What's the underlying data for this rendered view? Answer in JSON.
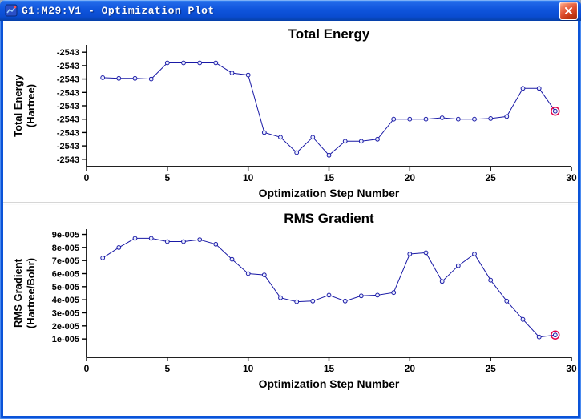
{
  "window": {
    "title": "G1:M29:V1 - Optimization Plot"
  },
  "colors": {
    "line": "#1a1aa6",
    "marker_fill": "#e9edff",
    "highlight_ring": "#e0004c",
    "axis": "#000000"
  },
  "chart_data": [
    {
      "type": "line",
      "title": "Total Energy",
      "ylabel": "Total Energy (Hartree)",
      "ylabel_lines": [
        "Total Energy",
        "(Hartree)"
      ],
      "xlabel": "Optimization Step Number",
      "xlim": [
        0,
        30
      ],
      "x_ticks": [
        0,
        5,
        10,
        15,
        20,
        25,
        30
      ],
      "y_ticks": [
        1,
        2,
        3,
        4,
        5,
        6,
        7,
        8,
        9
      ],
      "y_tick_labels": [
        "-2543",
        "-2543",
        "-2543",
        "-2543",
        "-2543",
        "-2543",
        "-2543",
        "-2543",
        "-2543"
      ],
      "ylim": [
        0.45,
        9.55
      ],
      "y_note": "axis labels are truncated to -2543; series values given in axis tick units, 1 = bottom tick, 9 = top tick",
      "x": [
        1,
        2,
        3,
        4,
        5,
        6,
        7,
        8,
        9,
        10,
        11,
        12,
        13,
        14,
        15,
        16,
        17,
        18,
        19,
        20,
        21,
        22,
        23,
        24,
        25,
        26,
        27,
        28,
        29
      ],
      "values": [
        7.1,
        7.05,
        7.05,
        7.0,
        8.2,
        8.2,
        8.2,
        8.2,
        7.45,
        7.3,
        3.0,
        2.65,
        1.5,
        2.65,
        1.3,
        2.35,
        2.35,
        2.5,
        4.0,
        4.0,
        4.0,
        4.1,
        4.0,
        4.0,
        4.05,
        4.2,
        6.3,
        6.3,
        4.6
      ],
      "grid": false,
      "legend": false,
      "highlight_last_point": true
    },
    {
      "type": "line",
      "title": "RMS Gradient",
      "ylabel": "RMS Gradient (Hartree/Bohr)",
      "ylabel_lines": [
        "RMS Gradient",
        "(Hartree/Bohr)"
      ],
      "xlabel": "Optimization Step Number",
      "xlim": [
        0,
        30
      ],
      "x_ticks": [
        0,
        5,
        10,
        15,
        20,
        25,
        30
      ],
      "y_ticks": [
        1,
        2,
        3,
        4,
        5,
        6,
        7,
        8,
        9
      ],
      "y_tick_labels": [
        "1e-005",
        "2e-005",
        "3e-005",
        "4e-005",
        "5e-005",
        "6e-005",
        "7e-005",
        "8e-005",
        "9e-005"
      ],
      "ylim": [
        -0.4,
        9.4
      ],
      "y_note": "series values given in units of 1e-005 Hartree/Bohr",
      "x": [
        1,
        2,
        3,
        4,
        5,
        6,
        7,
        8,
        9,
        10,
        11,
        12,
        13,
        14,
        15,
        16,
        17,
        18,
        19,
        20,
        21,
        22,
        23,
        24,
        25,
        26,
        27,
        28,
        29
      ],
      "values": [
        7.2,
        8.0,
        8.7,
        8.7,
        8.45,
        8.45,
        8.6,
        8.25,
        7.1,
        6.0,
        5.9,
        4.15,
        3.85,
        3.9,
        4.35,
        3.9,
        4.3,
        4.35,
        4.55,
        7.5,
        7.6,
        5.4,
        6.6,
        7.5,
        5.5,
        3.9,
        2.5,
        1.15,
        1.3
      ],
      "grid": false,
      "legend": false,
      "highlight_last_point": true
    }
  ]
}
